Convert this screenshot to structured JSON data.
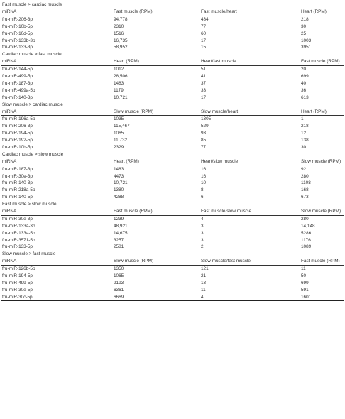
{
  "sections": [
    {
      "title": "Fast muscle > cardiac muscle",
      "headers": [
        "miRNA",
        "Fast muscle (RPM)",
        "Fast muscle/heart",
        "Heart (RPM)"
      ],
      "rows": [
        [
          "fru-miR-206-3p",
          "94,778",
          "434",
          "218"
        ],
        [
          "fru-miR-10b-5p",
          "2310",
          "77",
          "30"
        ],
        [
          "fru-miR-10d-5p",
          "1516",
          "60",
          "25"
        ],
        [
          "fru-miR-133b-3p",
          "16,735",
          "17",
          "1003"
        ],
        [
          "fru-miR-133-3p",
          "58,952",
          "15",
          "3951"
        ]
      ]
    },
    {
      "title": "Cardiac muscle > fast muscle",
      "headers": [
        "miRNA",
        "Heart (RPM)",
        "Heart/fast muscle",
        "Fast muscle (RPM)"
      ],
      "rows": [
        [
          "fru-miR-144-5p",
          "1012",
          "51",
          "20"
        ],
        [
          "fru-miR-499-5p",
          "28,506",
          "41",
          "699"
        ],
        [
          "fru-miR-187-3p",
          "1483",
          "37",
          "40"
        ],
        [
          "fru-miR-499a-5p",
          "1179",
          "33",
          "36"
        ],
        [
          "fru-miR-140-3p",
          "10,721",
          "17",
          "613"
        ]
      ]
    },
    {
      "title": "Slow muscle > cardiac muscle",
      "headers": [
        "miRNA",
        "Slow muscle (RPM)",
        "Slow muscle/heart",
        "Heart (RPM)"
      ],
      "rows": [
        [
          "fru-miR-196a-5p",
          "1035",
          "1305",
          "1"
        ],
        [
          "fru-miR-206-3p",
          "115,467",
          "529",
          "218"
        ],
        [
          "fru-miR-194-5p",
          "1065",
          "93",
          "12"
        ],
        [
          "fru-miR-192-5p",
          "11 732",
          "85",
          "138"
        ],
        [
          "fru-miR-10b-5p",
          "2329",
          "77",
          "30"
        ]
      ]
    },
    {
      "title": "Cardiac muscle > slow muscle",
      "headers": [
        "miRNA",
        "Heart (RPM)",
        "Heart/slow muscle",
        "Slow muscle (RPM)"
      ],
      "rows": [
        [
          "fru-miR-187-3p",
          "1483",
          "16",
          "92"
        ],
        [
          "fru-miR-30e-3p",
          "4473",
          "16",
          "280"
        ],
        [
          "fru-miR-140-3p",
          "10,721",
          "10",
          "1108"
        ],
        [
          "fru-miR-218a-5p",
          "1380",
          "8",
          "168"
        ],
        [
          "fru-miR-140-5p",
          "4288",
          "6",
          "673"
        ]
      ]
    },
    {
      "title": "Fast muscle > slow muscle",
      "headers": [
        "miRNA",
        "Fast muscle (RPM)",
        "Fast muscle/slow muscle",
        "Slow muscle (RPM)"
      ],
      "rows": [
        [
          "fru-miR-30e-3p",
          "1239",
          "4",
          "280"
        ],
        [
          "fru-miR-133a-3p",
          "48,921",
          "3",
          "14,148"
        ],
        [
          "fru-miR-133a-5p",
          "14,675",
          "3",
          "5286"
        ],
        [
          "fru-miR-3571-5p",
          "3257",
          "3",
          "1176"
        ],
        [
          "fru-miR-133-5p",
          "2581",
          "2",
          "1089"
        ]
      ]
    },
    {
      "title": "Slow muscle > fast muscle",
      "headers": [
        "miRNA",
        "Slow muscle (RPM)",
        "Slow muscle/fast muscle",
        "Fast muscle (RPM)"
      ],
      "rows": [
        [
          "fru-miR-126b-5p",
          "1350",
          "121",
          "11"
        ],
        [
          "fru-miR-194-5p",
          "1065",
          "21",
          "50"
        ],
        [
          "fru-miR-499-5p",
          "9193",
          "13",
          "699"
        ],
        [
          "fru-miR-30e-5p",
          "6361",
          "11",
          "591"
        ],
        [
          "fru-miR-30c-5p",
          "6669",
          "4",
          "1601"
        ]
      ]
    }
  ]
}
